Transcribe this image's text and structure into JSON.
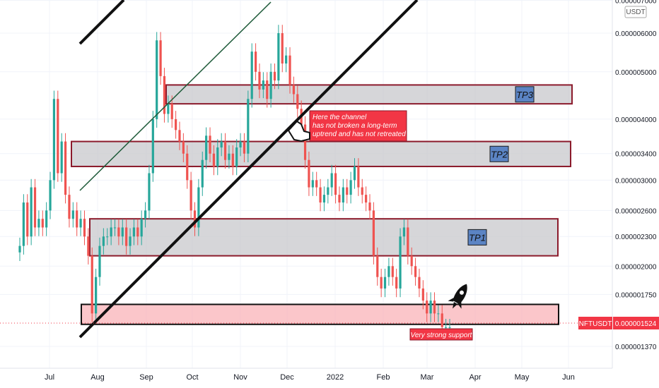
{
  "chart_data": {
    "type": "candlestick",
    "title": "",
    "xlabel": "",
    "ylabel": "",
    "y_scale": "log",
    "currency_label": "USDT",
    "ticker_label": "NFTUSDT",
    "last_price": "0.000001524",
    "price_axis_labels": [
      "0.000007000",
      "0.000006000",
      "0.000005000",
      "0.000004000",
      "0.000003400",
      "0.000003000",
      "0.000002600",
      "0.000002300",
      "0.000002000",
      "0.000001750",
      "0.000001370"
    ],
    "time_axis_labels": [
      "Jul",
      "Aug",
      "Sep",
      "Oct",
      "Nov",
      "Dec",
      "2022",
      "Feb",
      "Mar",
      "Apr",
      "May",
      "Jun"
    ],
    "candles_close": [
      2.2e-06,
      2.7e-06,
      2.3e-06,
      2.9e-06,
      2.4e-06,
      2.5e-06,
      2.4e-06,
      2.6e-06,
      3e-06,
      4.4e-06,
      3.1e-06,
      3.6e-06,
      2.8e-06,
      2.5e-06,
      2.6e-06,
      2.4e-06,
      2.5e-06,
      2.3e-06,
      2.1e-06,
      1.6e-06,
      1.9e-06,
      2.2e-06,
      2.3e-06,
      2.3e-06,
      2.4e-06,
      2.4e-06,
      2.3e-06,
      2.4e-06,
      2.2e-06,
      2.3e-06,
      2.4e-06,
      2.3e-06,
      2.5e-06,
      2.6e-06,
      3.1e-06,
      4e-06,
      5.8e-06,
      4.9e-06,
      4.1e-06,
      4.3e-06,
      4e-06,
      3.8e-06,
      3.6e-06,
      3.4e-06,
      3e-06,
      2.6e-06,
      2.4e-06,
      2.9e-06,
      3.3e-06,
      3.7e-06,
      3.4e-06,
      3.2e-06,
      3.5e-06,
      3.6e-06,
      3.3e-06,
      3.4e-06,
      3.2e-06,
      3.5e-06,
      3.6e-06,
      3.4e-06,
      4.4e-06,
      5.5e-06,
      5e-06,
      4.6e-06,
      4.8e-06,
      4.4e-06,
      5e-06,
      4.8e-06,
      6e-06,
      5.2e-06,
      5.4e-06,
      4.7e-06,
      4.5e-06,
      4.2e-06,
      3.9e-06,
      3.3e-06,
      2.9e-06,
      3e-06,
      2.9e-06,
      2.7e-06,
      2.8e-06,
      2.9e-06,
      3.1e-06,
      2.8e-06,
      2.7e-06,
      2.9e-06,
      2.8e-06,
      3e-06,
      3.2e-06,
      2.9e-06,
      2.8e-06,
      2.7e-06,
      2.6e-06,
      2.1e-06,
      1.9e-06,
      1.8e-06,
      1.9e-06,
      2e-06,
      1.9e-06,
      1.8e-06,
      2.3e-06,
      2.4e-06,
      2.1e-06,
      2e-06,
      1.9e-06,
      1.8e-06,
      1.7e-06,
      1.6e-06,
      1.7e-06,
      1.6e-06,
      1.6e-06,
      1.5e-06,
      1.5e-06,
      1.5e-06
    ],
    "zones": [
      {
        "name": "TP3",
        "label": "TP3",
        "y_top": 4.7e-06,
        "y_bottom": 4.3e-06,
        "fill": "#c8c8cc",
        "border": "#8b1a2b"
      },
      {
        "name": "TP2",
        "label": "TP2",
        "y_top": 3.6e-06,
        "y_bottom": 3.2e-06,
        "fill": "#c8c8cc",
        "border": "#8b1a2b"
      },
      {
        "name": "TP1",
        "label": "TP1",
        "y_top": 2.5e-06,
        "y_bottom": 2.1e-06,
        "fill": "#c8c8cc",
        "border": "#8b1a2b"
      },
      {
        "name": "support",
        "label": "",
        "y_top": 1.67e-06,
        "y_bottom": 1.52e-06,
        "fill": "#f9b3b8",
        "border": "#111111"
      }
    ],
    "annotations": {
      "channel_note_lines": [
        "Here the channel",
        " has not broken a long-term",
        "uptrend and has not retreated"
      ],
      "support_note": "Very strong support"
    },
    "colors": {
      "up": "#26a69a",
      "down": "#ef5350",
      "note_bg": "#f23645",
      "tp_badge": "#5b84c4",
      "price_tag": "#f23645"
    }
  }
}
